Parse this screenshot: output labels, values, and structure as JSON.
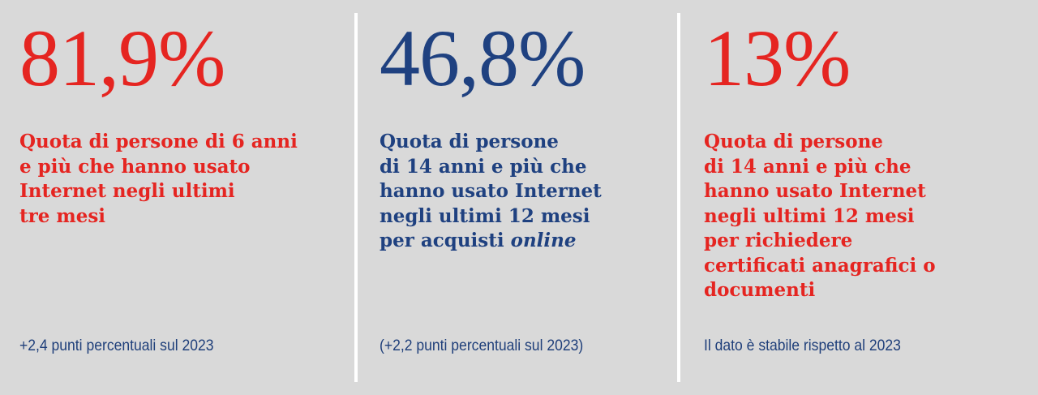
{
  "colors": {
    "background": "#d9d9d9",
    "red": "#e52521",
    "blue": "#1f4180",
    "note": "#1f3f7a",
    "divider": "#ffffff"
  },
  "panels": [
    {
      "value": "81,9%",
      "color": "red",
      "description_lines": [
        "Quota di persone di 6 anni",
        "e più che hanno usato",
        "Internet negli ultimi",
        "tre mesi"
      ],
      "note": "+2,4 punti percentuali sul 2023"
    },
    {
      "value": "46,8%",
      "color": "blue",
      "description_lines": [
        "Quota di persone",
        "di 14 anni e più che",
        "hanno usato Internet",
        "negli ultimi 12 mesi"
      ],
      "description_last_prefix": "per acquisti ",
      "description_last_italic": "online",
      "note": "(+2,2 punti percentuali sul 2023)"
    },
    {
      "value": "13%",
      "color": "red",
      "description_lines": [
        "Quota di persone",
        "di 14 anni e più che",
        "hanno usato Internet",
        "negli ultimi 12 mesi",
        "per richiedere",
        "certificati anagrafici o",
        "documenti"
      ],
      "note": "Il dato è stabile rispetto al 2023"
    }
  ]
}
